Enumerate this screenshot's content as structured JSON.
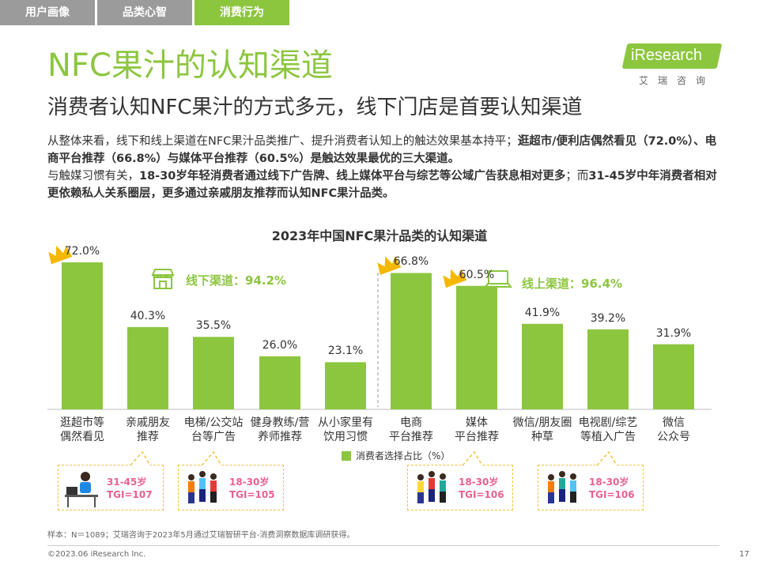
{
  "tabs": [
    {
      "label": "用户画像"
    },
    {
      "label": "品类心智"
    },
    {
      "label": "消费行为"
    }
  ],
  "header": {
    "title": "NFC果汁的认知渠道",
    "subtitle": "消费者认知NFC果汁的方式多元，线下门店是首要认知渠道"
  },
  "logo": {
    "text": "iResearch",
    "cn": "艾瑞咨询"
  },
  "description": {
    "p1_normal": "从整体来看，线下和线上渠道在NFC果汁品类推广、提升消费者认知上的触达效果基本持平；",
    "p1_bold": "逛超市/便利店偶然看见（72.0%）、电商平台推荐（66.8%）与媒体平台推荐（60.5%）是触达效果最优的三大渠道。",
    "p2_normal_a": "与触媒习惯有关，",
    "p2_bold_a": "18-30岁年轻消费者通过线下广告牌、线上媒体平台与综艺等公域广告获息相对更多",
    "p2_normal_b": "；而",
    "p2_bold_b": "31-45岁中年消费者相对更依赖私人关系圈层，更多通过亲戚朋友推荐而认知NFC果汁品类。"
  },
  "chart_data": {
    "type": "bar",
    "title": "2023年中国NFC果汁品类的认知渠道",
    "categories": [
      "逛超市等偶然看见",
      "亲戚朋友推荐",
      "电梯/公交站台等广告",
      "健身教练/营养师推荐",
      "从小家里有饮用习惯",
      "电商平台推荐",
      "媒体平台推荐",
      "微信/朋友圈种草",
      "电视剧/综艺等植入广告",
      "微信公众号"
    ],
    "category_lines": [
      [
        "逛超市等",
        "偶然看见"
      ],
      [
        "亲戚朋友",
        "推荐"
      ],
      [
        "电梯/公交站",
        "台等广告"
      ],
      [
        "健身教练/营",
        "养师推荐"
      ],
      [
        "从小家里有",
        "饮用习惯"
      ],
      [
        "电商",
        "平台推荐"
      ],
      [
        "媒体",
        "平台推荐"
      ],
      [
        "微信/朋友圈",
        "种草"
      ],
      [
        "电视剧/综艺",
        "等植入广告"
      ],
      [
        "微信",
        "公众号"
      ]
    ],
    "series": [
      {
        "name": "消费者选择占比（%）",
        "values": [
          72.0,
          40.3,
          35.5,
          26.0,
          23.1,
          66.8,
          60.5,
          41.9,
          39.2,
          31.9
        ]
      }
    ],
    "value_labels": [
      "72.0%",
      "40.3%",
      "35.5%",
      "26.0%",
      "23.1%",
      "66.8%",
      "60.5%",
      "41.9%",
      "39.2%",
      "31.9%"
    ],
    "ylim": [
      0,
      100
    ],
    "crowned": [
      0,
      5,
      6
    ],
    "color": "#8cc63f",
    "legend": "消费者选择占比（%）"
  },
  "channels": {
    "offline": "线下渠道：94.2%",
    "online": "线上渠道：96.4%"
  },
  "tgi_callouts": [
    {
      "age": "31-45岁",
      "tgi": "TGI=107"
    },
    {
      "age": "18-30岁",
      "tgi": "TGI=105"
    },
    {
      "age": "18-30岁",
      "tgi": "TGI=106"
    },
    {
      "age": "18-30岁",
      "tgi": "TGI=106"
    }
  ],
  "footer": {
    "note": "样本：N＝1089；艾瑞咨询于2023年5月通过艾瑞智研平台-消费洞察数据库调研获得。",
    "copyright": "©2023.06 iResearch Inc.",
    "page": "17"
  },
  "colors": {
    "brand_green": "#8cc63f",
    "tab_gray": "#9b9b9b",
    "crown": "#f5b800",
    "tgi_pink": "#e8618c",
    "tgi_border": "#f6c23e"
  }
}
